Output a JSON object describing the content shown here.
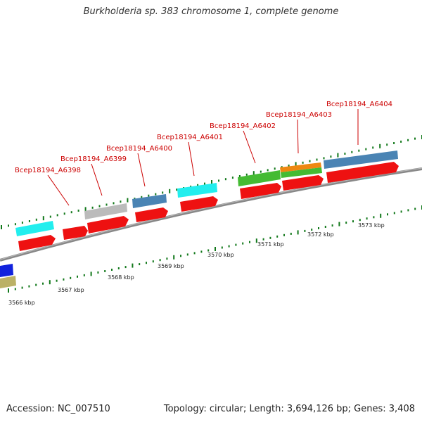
{
  "title": "Burkholderia sp. 383 chromosome 1, complete genome",
  "accession": "Accession: NC_007510",
  "topology": "Topology: circular; Length: 3,694,126 bp; Genes: 3,408",
  "colors": {
    "red": "#ee1111",
    "cyan": "#22eeee",
    "gray": "#bbbbbb",
    "steelblue": "#4a84b4",
    "green": "#44bb33",
    "orange": "#ee8811",
    "blue": "#1122dd",
    "khaki": "#bbb166",
    "tick_green": "#11781a",
    "label_red": "#cc0000",
    "backbone": "#777777"
  },
  "gene_labels": [
    "Bcep18194_A6398",
    "Bcep18194_A6399",
    "Bcep18194_A6400",
    "Bcep18194_A6401",
    "Bcep18194_A6402",
    "Bcep18194_A6403",
    "Bcep18194_A6404"
  ],
  "kbp_labels": [
    "3566 kbp",
    "3567 kbp",
    "3568 kbp",
    "3569 kbp",
    "3570 kbp",
    "3571 kbp",
    "3572 kbp",
    "3573 kbp"
  ]
}
